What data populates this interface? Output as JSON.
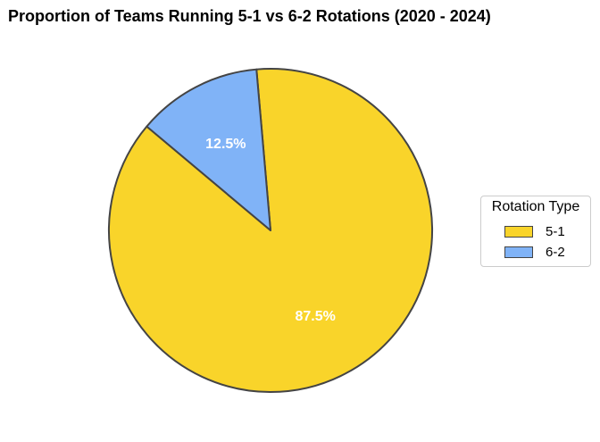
{
  "chart_data": {
    "type": "pie",
    "title": "Proportion of Teams Running 5-1 vs 6-2 Rotations (2020 - 2024)",
    "slices": [
      {
        "label": "5-1",
        "value": 87.5,
        "value_label": "87.5%",
        "color": "#f9d42a"
      },
      {
        "label": "6-2",
        "value": 12.5,
        "value_label": "12.5%",
        "color": "#80b3f7"
      }
    ],
    "start_angle_deg": 140,
    "direction": "counterclockwise",
    "edge_color": "#444444",
    "value_label_color": "#ffffff",
    "legend": {
      "title": "Rotation Type",
      "placement": "center-right"
    }
  }
}
